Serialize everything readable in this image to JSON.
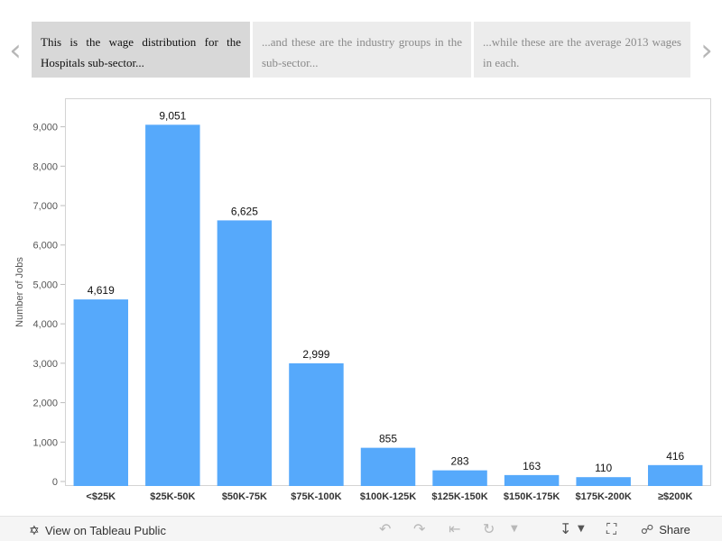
{
  "story": {
    "points": [
      {
        "text": "This is the wage distribution for the Hospitals sub-sector..."
      },
      {
        "text": "...and these are the industry groups in the sub-sector..."
      },
      {
        "text": "...while these are the average 2013 wages in each."
      }
    ],
    "prev_icon": "chevron-left-icon",
    "next_icon": "chevron-right-icon"
  },
  "chart_data": {
    "type": "bar",
    "title": "",
    "xlabel": "",
    "ylabel": "Number of Jobs",
    "categories": [
      "<$25K",
      "$25K-50K",
      "$50K-75K",
      "$75K-100K",
      "$100K-125K",
      "$125K-150K",
      "$150K-175K",
      "$175K-200K",
      "≥$200K"
    ],
    "values": [
      4619,
      9051,
      6625,
      2999,
      855,
      283,
      163,
      110,
      416
    ],
    "data_labels": [
      "4,619",
      "9,051",
      "6,625",
      "2,999",
      "855",
      "283",
      "163",
      "110",
      "416"
    ],
    "yticks": [
      0,
      1000,
      2000,
      3000,
      4000,
      5000,
      6000,
      7000,
      8000,
      9000
    ],
    "ytick_labels": [
      "0",
      "1,000",
      "2,000",
      "3,000",
      "4,000",
      "5,000",
      "6,000",
      "7,000",
      "8,000",
      "9,000"
    ],
    "ylim": [
      0,
      9700
    ],
    "grid": false,
    "bar_color": "#56a9fb"
  },
  "toolbar": {
    "view_label": "View on Tableau Public",
    "view_icon": "tableau-logo-icon",
    "share_label": "Share"
  }
}
